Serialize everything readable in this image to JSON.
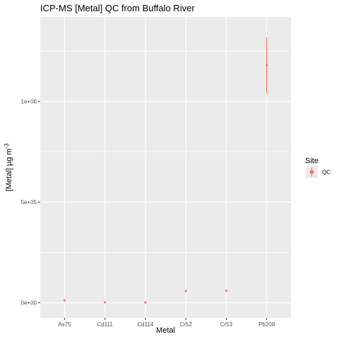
{
  "chart_data": {
    "type": "scatter",
    "title": "ICP-MS [Metal] QC from Buffalo River",
    "xlabel": "Metal",
    "ylabel_main": "[Metal] µg m",
    "ylabel_superscript": "-3",
    "categories": [
      "As75",
      "Cd111",
      "Cd114",
      "Cr52",
      "Cr53",
      "Pb208"
    ],
    "ylim": [
      -75000,
      1420000
    ],
    "yticks": [
      0,
      500000,
      1000000
    ],
    "ytick_labels": [
      "0e+00",
      "5e+05",
      "1e+06"
    ],
    "series": [
      {
        "name": "QC",
        "color": "#F8766D",
        "values": [
          12000,
          2000,
          1500,
          58000,
          60000,
          1180000
        ],
        "error_low": [
          12000,
          2000,
          1500,
          58000,
          60000,
          1040000
        ],
        "error_high": [
          12000,
          2000,
          1500,
          58000,
          60000,
          1320000
        ]
      }
    ],
    "legend": {
      "title": "Site",
      "placement": "right"
    },
    "grid": true,
    "panel_background": "#EBEBEB",
    "grid_color": "#FFFFFF"
  }
}
